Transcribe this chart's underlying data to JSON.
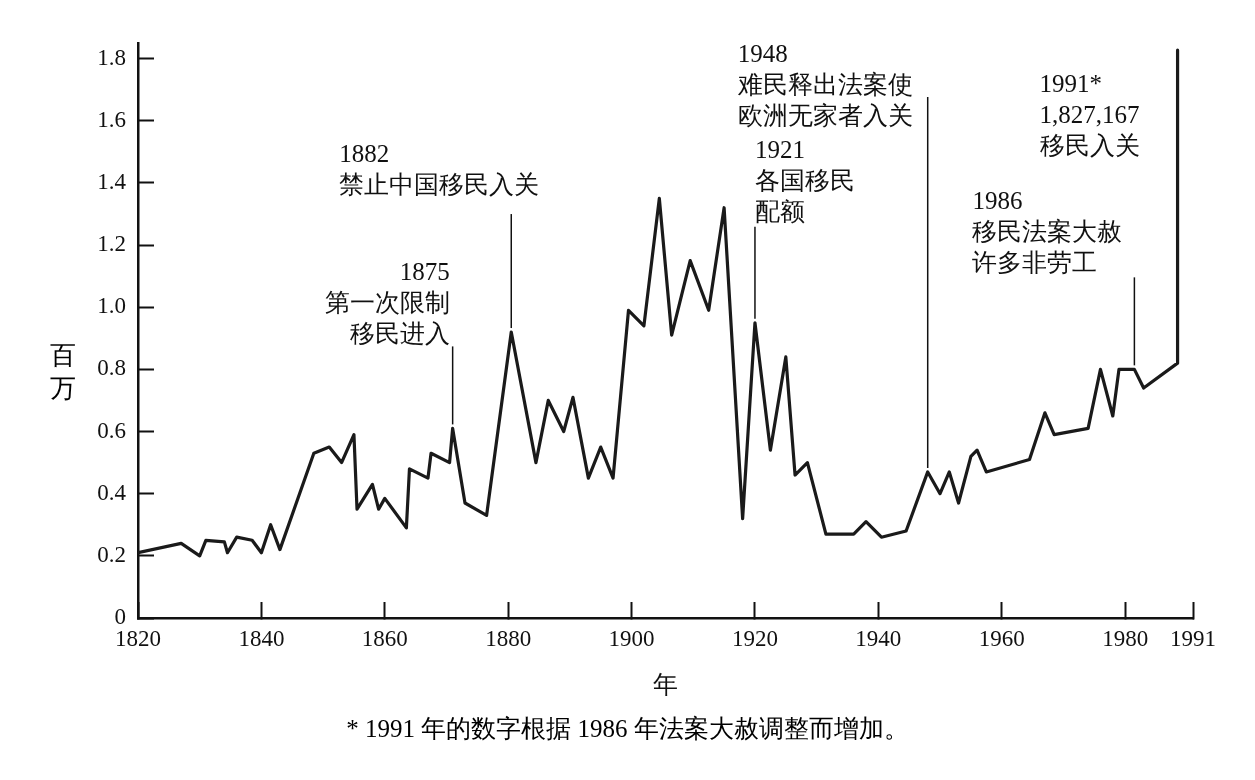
{
  "chart_data": {
    "type": "line",
    "xlabel": "年",
    "ylabel": "百万",
    "x": [
      1820,
      1827,
      1830,
      1831,
      1834,
      1834.5,
      1836,
      1838.5,
      1840,
      1841.5,
      1843,
      1848.5,
      1851,
      1853,
      1855,
      1855.5,
      1858,
      1859,
      1860,
      1863.5,
      1864,
      1867,
      1867.5,
      1870.5,
      1871,
      1873,
      1876.5,
      1880.5,
      1884.5,
      1886.5,
      1889,
      1890.5,
      1893,
      1895,
      1897,
      1899.5,
      1902,
      1904.5,
      1906.5,
      1909.5,
      1912.5,
      1915,
      1918,
      1920,
      1922.5,
      1925,
      1926.5,
      1928.5,
      1931.5,
      1936,
      1938,
      1940.5,
      1944.5,
      1948,
      1950,
      1951.5,
      1953,
      1955,
      1956,
      1957.5,
      1964.5,
      1967,
      1968.5,
      1974,
      1976,
      1978,
      1979,
      1981.5,
      1983,
      1988.5,
      1988.5
    ],
    "series": [
      {
        "color": "#1a1a1a",
        "values": [
          0.21,
          0.24,
          0.2,
          0.25,
          0.245,
          0.21,
          0.26,
          0.25,
          0.21,
          0.3,
          0.22,
          0.53,
          0.55,
          0.5,
          0.59,
          0.35,
          0.43,
          0.35,
          0.385,
          0.29,
          0.48,
          0.45,
          0.53,
          0.5,
          0.61,
          0.37,
          0.33,
          0.92,
          0.5,
          0.7,
          0.6,
          0.71,
          0.45,
          0.55,
          0.45,
          0.99,
          0.94,
          1.35,
          0.91,
          1.15,
          0.99,
          1.32,
          0.32,
          0.95,
          0.54,
          0.84,
          0.46,
          0.5,
          0.27,
          0.27,
          0.31,
          0.26,
          0.28,
          0.47,
          0.4,
          0.47,
          0.37,
          0.52,
          0.54,
          0.47,
          0.51,
          0.66,
          0.59,
          0.61,
          0.8,
          0.65,
          0.8,
          0.8,
          0.74,
          0.82,
          1.827
        ]
      }
    ],
    "xlim": [
      1820,
      1991
    ],
    "xticks": [
      1820,
      1840,
      1860,
      1880,
      1900,
      1920,
      1940,
      1960,
      1980,
      1991
    ],
    "ylim": [
      0,
      1.85
    ],
    "yticks": [
      0,
      0.2,
      0.4,
      0.6,
      0.8,
      {
        "value": 1,
        "label": "1.0"
      },
      1.2,
      1.4,
      1.6,
      1.8
    ],
    "grid": false,
    "legend": false,
    "marker": "none",
    "line_style": "solid",
    "annotations": [
      {
        "text": "1875 第一次限制移民进入",
        "x": 1871,
        "y": 0.61
      },
      {
        "text": "1882 禁止中国移民入关",
        "x": 1880.5,
        "y": 0.92
      },
      {
        "text": "1948 难民释出法案使欧洲无家者入关",
        "x": 1948,
        "y": 0.47
      },
      {
        "text": "1921 各国移民配额",
        "x": 1920,
        "y": 0.95
      },
      {
        "text": "1986 移民法案大赦许多非劳工",
        "x": 1981.5,
        "y": 0.8
      },
      {
        "text": "1991* 1,827,167 移民入关",
        "x": 1988.5,
        "y": 1.827
      },
      "* 1991 年的数字根据 1986 年法案大赦调整而增加。"
    ]
  }
}
